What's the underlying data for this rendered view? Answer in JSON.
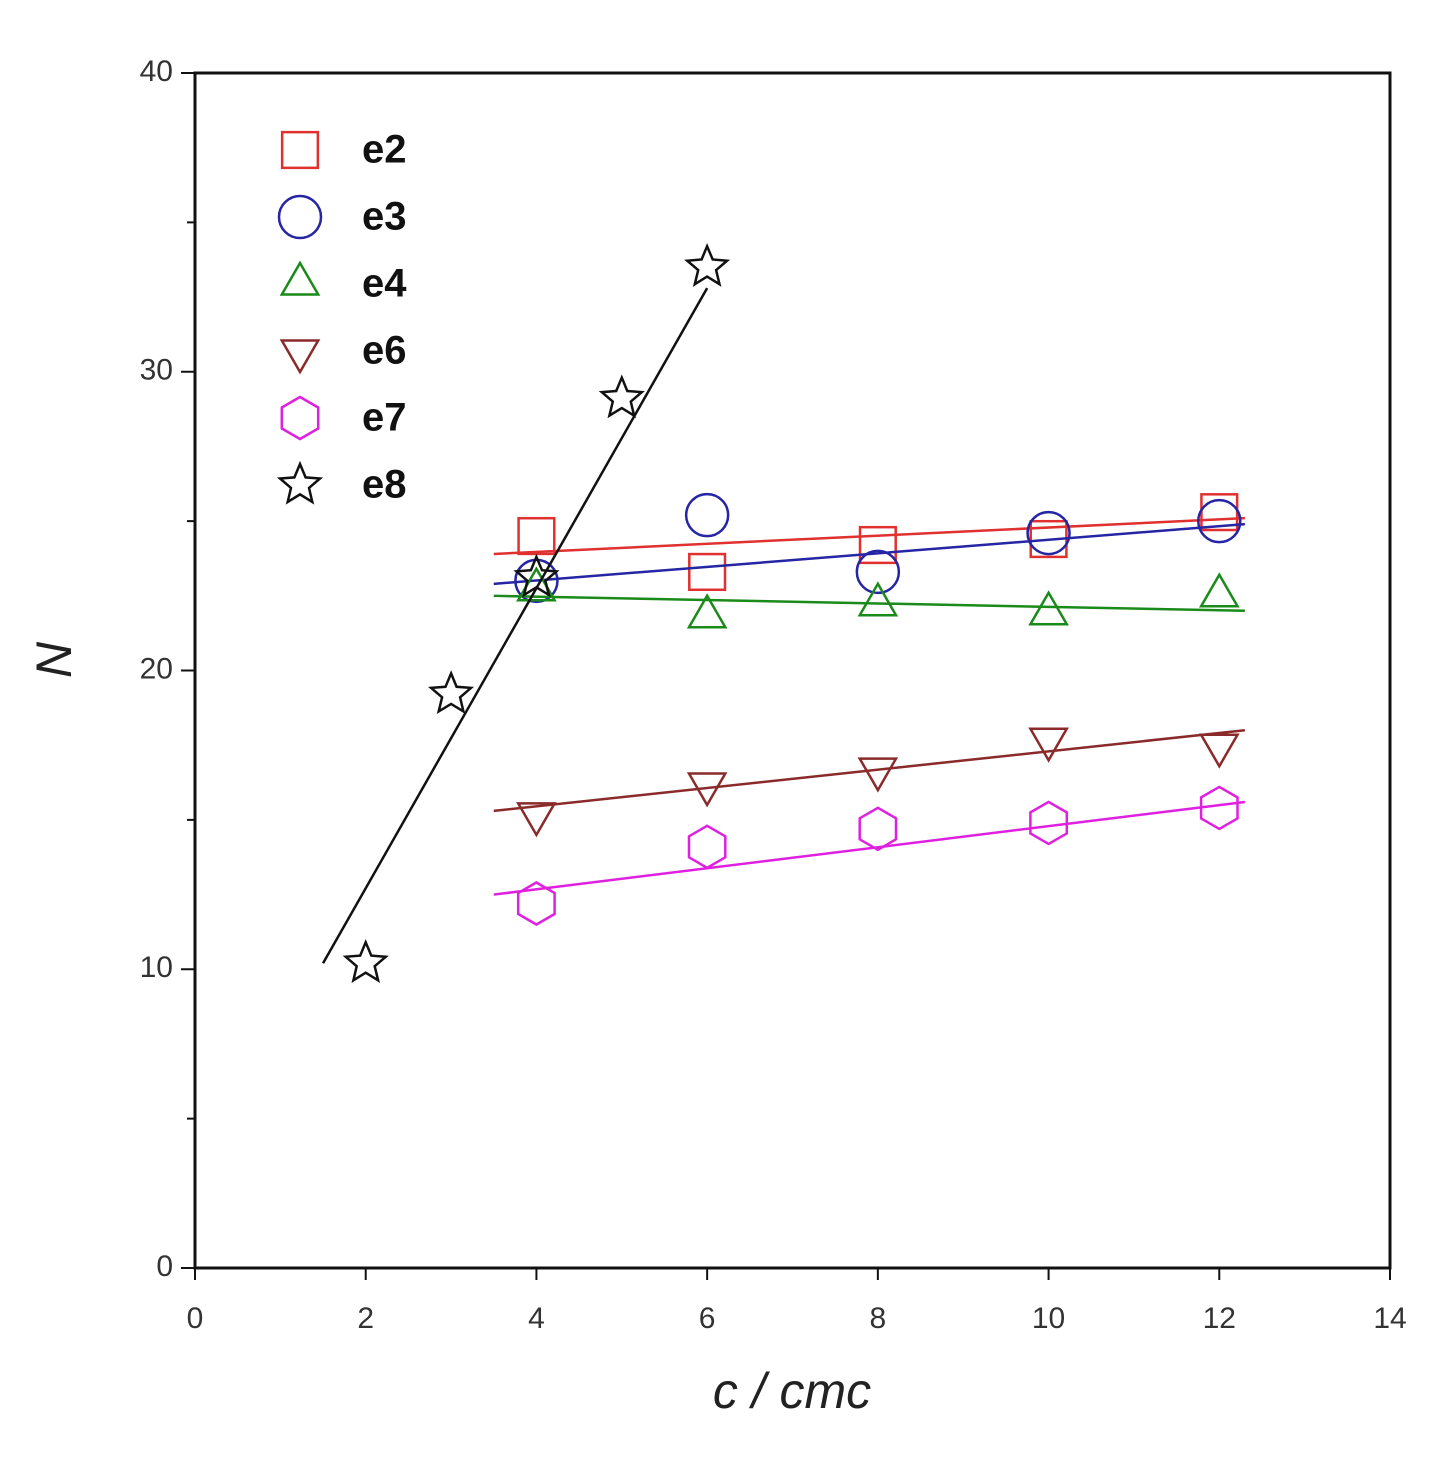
{
  "chart_data": {
    "type": "scatter",
    "xlabel": "c / cmc",
    "ylabel": "N",
    "xlim": [
      0,
      14
    ],
    "xticks": [
      0,
      2,
      4,
      6,
      8,
      10,
      12,
      14
    ],
    "ylim": [
      0,
      40
    ],
    "yticks": [
      0,
      10,
      20,
      30,
      40
    ],
    "yminorticks": [
      5,
      15,
      25,
      35
    ],
    "legend": "upper-left",
    "series": [
      {
        "name": "e2",
        "color": "#e03030",
        "marker": "square",
        "x": [
          4,
          6,
          8,
          10,
          12
        ],
        "y": [
          24.5,
          23.3,
          24.2,
          24.4,
          25.3
        ],
        "fit": {
          "x": [
            3.5,
            12.3
          ],
          "y": [
            23.9,
            25.1
          ]
        }
      },
      {
        "name": "e3",
        "color": "#2525a5",
        "marker": "circle",
        "x": [
          4,
          6,
          8,
          10,
          12
        ],
        "y": [
          23.0,
          25.2,
          23.3,
          24.6,
          25.0
        ],
        "fit": {
          "x": [
            3.5,
            12.3
          ],
          "y": [
            22.9,
            24.9
          ]
        }
      },
      {
        "name": "e4",
        "color": "#1a8a1a",
        "marker": "triangle-up",
        "x": [
          4,
          6,
          8,
          10,
          12
        ],
        "y": [
          22.7,
          21.8,
          22.2,
          21.9,
          22.5
        ],
        "fit": {
          "x": [
            3.5,
            12.3
          ],
          "y": [
            22.5,
            22.0
          ]
        }
      },
      {
        "name": "e6",
        "color": "#8b2a2a",
        "marker": "triangle-down",
        "x": [
          4,
          6,
          8,
          10,
          12
        ],
        "y": [
          15.2,
          16.2,
          16.7,
          17.7,
          17.5
        ],
        "fit": {
          "x": [
            3.5,
            12.3
          ],
          "y": [
            15.3,
            18.0
          ]
        }
      },
      {
        "name": "e7",
        "color": "#e020e0",
        "marker": "hexagon",
        "x": [
          4,
          6,
          8,
          10,
          12
        ],
        "y": [
          12.2,
          14.1,
          14.7,
          14.9,
          15.4
        ],
        "fit": {
          "x": [
            3.5,
            12.3
          ],
          "y": [
            12.5,
            15.6
          ]
        }
      },
      {
        "name": "e8",
        "color": "#111111",
        "marker": "star",
        "x": [
          2,
          3,
          4,
          5,
          6
        ],
        "y": [
          10.2,
          19.2,
          23.1,
          29.1,
          33.5
        ],
        "fit": {
          "x": [
            1.5,
            6.0
          ],
          "y": [
            10.2,
            32.8
          ]
        }
      }
    ]
  }
}
